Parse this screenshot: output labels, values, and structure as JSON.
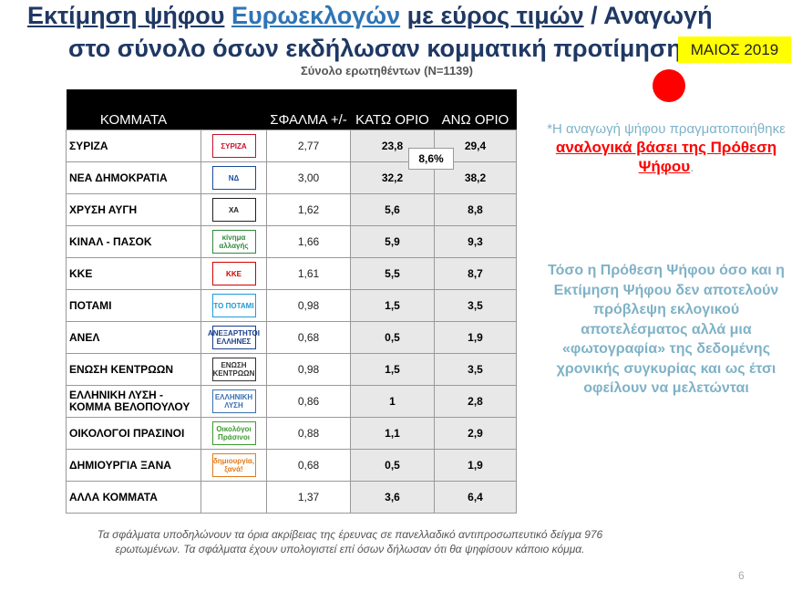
{
  "title_line1": {
    "part1": "Εκτίμηση ψήφου",
    "part2": "Ευρωεκλογών",
    "part3": "με εύρος τιμών",
    "part4": " / Αναγωγή"
  },
  "title_line2": "στο σύνολο όσων εκδήλωσαν κομματική προτίμηση",
  "badge": "ΜΑΙΟΣ 2019",
  "subtitle": "Σύνολο ερωτηθέντων (N=1139)",
  "chart_data": {
    "type": "table",
    "columns": [
      "ΚΟΜΜΑΤΑ",
      "ΣΦΑΛΜΑ +/-",
      "ΚΑΤΩ ΟΡΙΟ",
      "ΑΝΩ ΟΡΙΟ"
    ],
    "rows": [
      {
        "party": "ΣΥΡΙΖΑ",
        "logo": "ΣΥΡΙΖΑ",
        "logo_color": "#c8102e",
        "error": "2,77",
        "low": "23,8",
        "high": "29,4"
      },
      {
        "party": "ΝΕΑ ΔΗΜΟΚΡΑΤΙΑ",
        "logo": "ΝΔ",
        "logo_color": "#1a4b9b",
        "error": "3,00",
        "low": "32,2",
        "high": "38,2"
      },
      {
        "party": "ΧΡΥΣΗ ΑΥΓΗ",
        "logo": "ΧΑ",
        "logo_color": "#222222",
        "error": "1,62",
        "low": "5,6",
        "high": "8,8"
      },
      {
        "party": "ΚΙΝΑΛ - ΠΑΣΟΚ",
        "logo": "κίνημα αλλαγής",
        "logo_color": "#2e8b3c",
        "error": "1,66",
        "low": "5,9",
        "high": "9,3"
      },
      {
        "party": "ΚΚΕ",
        "logo": "ΚΚΕ",
        "logo_color": "#d40000",
        "error": "1,61",
        "low": "5,5",
        "high": "8,7"
      },
      {
        "party": "ΠΟΤΑΜΙ",
        "logo": "ΤΟ ΠΟΤΑΜΙ",
        "logo_color": "#1f9bd7",
        "error": "0,98",
        "low": "1,5",
        "high": "3,5"
      },
      {
        "party": "ΑΝΕΛ",
        "logo": "ΑΝΕΞΑΡΤΗΤΟΙ ΕΛΛΗΝΕΣ",
        "logo_color": "#1a3f8f",
        "error": "0,68",
        "low": "0,5",
        "high": "1,9"
      },
      {
        "party": "ΕΝΩΣΗ ΚΕΝΤΡΩΩΝ",
        "logo": "ΕΝΩΣΗ ΚΕΝΤΡΩΩΝ",
        "logo_color": "#333333",
        "error": "0,98",
        "low": "1,5",
        "high": "3,5"
      },
      {
        "party": "ΕΛΛΗΝΙΚΗ ΛΥΣΗ - ΚΟΜΜΑ ΒΕΛΟΠΟΥΛΟΥ",
        "logo": "ΕΛΛΗΝΙΚΗ ΛΥΣΗ",
        "logo_color": "#3a6fb0",
        "error": "0,86",
        "low": "1",
        "high": "2,8"
      },
      {
        "party": "ΟΙΚΟΛΟΓΟΙ ΠΡΑΣΙΝΟΙ",
        "logo": "Οικολόγοι Πράσινοι",
        "logo_color": "#3c9a2f",
        "error": "0,88",
        "low": "1,1",
        "high": "2,9"
      },
      {
        "party": "ΔΗΜΙΟΥΡΓΙΑ ΞΑΝΑ",
        "logo": "δημιουργία, ξανά!",
        "logo_color": "#e07b1a",
        "error": "0,68",
        "low": "0,5",
        "high": "1,9"
      },
      {
        "party": "ΑΛΛΑ ΚΟΜΜΑΤΑ",
        "logo": "",
        "logo_color": "#ffffff",
        "error": "1,37",
        "low": "3,6",
        "high": "6,4"
      }
    ],
    "gap_label": "8,6%"
  },
  "note1": {
    "pre": "*Η αναγωγή ψήφου πραγματοποιήθηκε ",
    "emph": "αναλογικά βάσει της Πρόθεση Ψήφου",
    "post": "."
  },
  "note2": "Τόσο η Πρόθεση Ψήφου όσο και η Εκτίμηση Ψήφου δεν αποτελούν πρόβλεψη εκλογικού αποτελέσματος αλλά μια «φωτογραφία» της δεδομένης χρονικής συγκυρίας και ως έτσι οφείλουν να μελετώνται",
  "footnote": "Τα σφάλματα υποδηλώνουν τα όρια ακρίβειας της έρευνας σε πανελλαδικό αντιπροσωπευτικό δείγμα 976 ερωτωμένων. Τα σφάλματα έχουν υπολογιστεί επί όσων δήλωσαν ότι θα ψηφίσουν κάποιο κόμμα.",
  "page_number": "6"
}
